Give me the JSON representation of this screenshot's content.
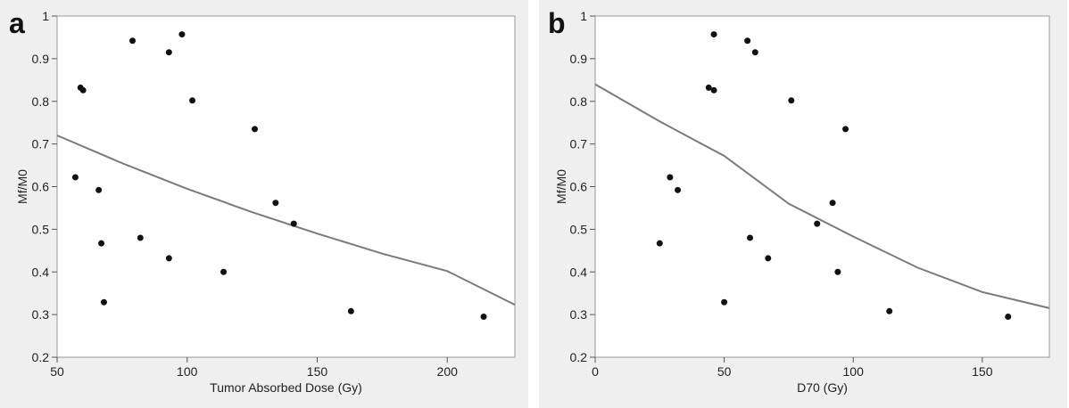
{
  "chart_data": [
    {
      "panel": "a",
      "type": "scatter",
      "title": "",
      "xlabel": "Tumor Absorbed Dose (Gy)",
      "ylabel": "Mf/M0",
      "xlim": [
        50,
        226
      ],
      "ylim": [
        0.2,
        1.0
      ],
      "xticks": [
        50,
        100,
        150,
        200
      ],
      "yticks": [
        0.2,
        0.3,
        0.4,
        0.5,
        0.6,
        0.7,
        0.8,
        0.9,
        1
      ],
      "ytick_labels": [
        "0.2",
        "0.3",
        "0.4",
        "0.5",
        "0.6",
        "0.7",
        "0.8",
        "0.9",
        "1"
      ],
      "grid": false,
      "points": [
        {
          "x": 57,
          "y": 0.622
        },
        {
          "x": 59,
          "y": 0.832
        },
        {
          "x": 60,
          "y": 0.826
        },
        {
          "x": 66,
          "y": 0.592
        },
        {
          "x": 67,
          "y": 0.467
        },
        {
          "x": 68,
          "y": 0.329
        },
        {
          "x": 79,
          "y": 0.942
        },
        {
          "x": 82,
          "y": 0.48
        },
        {
          "x": 93,
          "y": 0.915
        },
        {
          "x": 93,
          "y": 0.432
        },
        {
          "x": 98,
          "y": 0.957
        },
        {
          "x": 102,
          "y": 0.802
        },
        {
          "x": 114,
          "y": 0.4
        },
        {
          "x": 126,
          "y": 0.735
        },
        {
          "x": 134,
          "y": 0.562
        },
        {
          "x": 141,
          "y": 0.513
        },
        {
          "x": 163,
          "y": 0.308
        },
        {
          "x": 214,
          "y": 0.295
        }
      ],
      "fit_curve": [
        {
          "x": 50,
          "y": 0.72
        },
        {
          "x": 75,
          "y": 0.655
        },
        {
          "x": 100,
          "y": 0.595
        },
        {
          "x": 125,
          "y": 0.54
        },
        {
          "x": 150,
          "y": 0.49
        },
        {
          "x": 175,
          "y": 0.443
        },
        {
          "x": 200,
          "y": 0.402
        },
        {
          "x": 226,
          "y": 0.323
        }
      ]
    },
    {
      "panel": "b",
      "type": "scatter",
      "title": "",
      "xlabel": "D70 (Gy)",
      "ylabel": "Mf/M0",
      "xlim": [
        0,
        176
      ],
      "ylim": [
        0.2,
        1.0
      ],
      "xticks": [
        0,
        50,
        100,
        150
      ],
      "yticks": [
        0.2,
        0.3,
        0.4,
        0.5,
        0.6,
        0.7,
        0.8,
        0.9,
        1
      ],
      "ytick_labels": [
        "0.2",
        "0.3",
        "0.4",
        "0.5",
        "0.6",
        "0.7",
        "0.8",
        "0.9",
        "1"
      ],
      "grid": false,
      "points": [
        {
          "x": 25,
          "y": 0.467
        },
        {
          "x": 29,
          "y": 0.622
        },
        {
          "x": 32,
          "y": 0.592
        },
        {
          "x": 44,
          "y": 0.832
        },
        {
          "x": 46,
          "y": 0.957
        },
        {
          "x": 46,
          "y": 0.826
        },
        {
          "x": 50,
          "y": 0.329
        },
        {
          "x": 59,
          "y": 0.942
        },
        {
          "x": 60,
          "y": 0.48
        },
        {
          "x": 62,
          "y": 0.915
        },
        {
          "x": 67,
          "y": 0.432
        },
        {
          "x": 76,
          "y": 0.802
        },
        {
          "x": 86,
          "y": 0.513
        },
        {
          "x": 92,
          "y": 0.562
        },
        {
          "x": 94,
          "y": 0.4
        },
        {
          "x": 97,
          "y": 0.735
        },
        {
          "x": 114,
          "y": 0.308
        },
        {
          "x": 160,
          "y": 0.295
        }
      ],
      "fit_curve": [
        {
          "x": 0,
          "y": 0.84
        },
        {
          "x": 25,
          "y": 0.753
        },
        {
          "x": 50,
          "y": 0.672
        },
        {
          "x": 75,
          "y": 0.56
        },
        {
          "x": 100,
          "y": 0.483
        },
        {
          "x": 125,
          "y": 0.41
        },
        {
          "x": 150,
          "y": 0.353
        },
        {
          "x": 176,
          "y": 0.315
        }
      ]
    }
  ]
}
